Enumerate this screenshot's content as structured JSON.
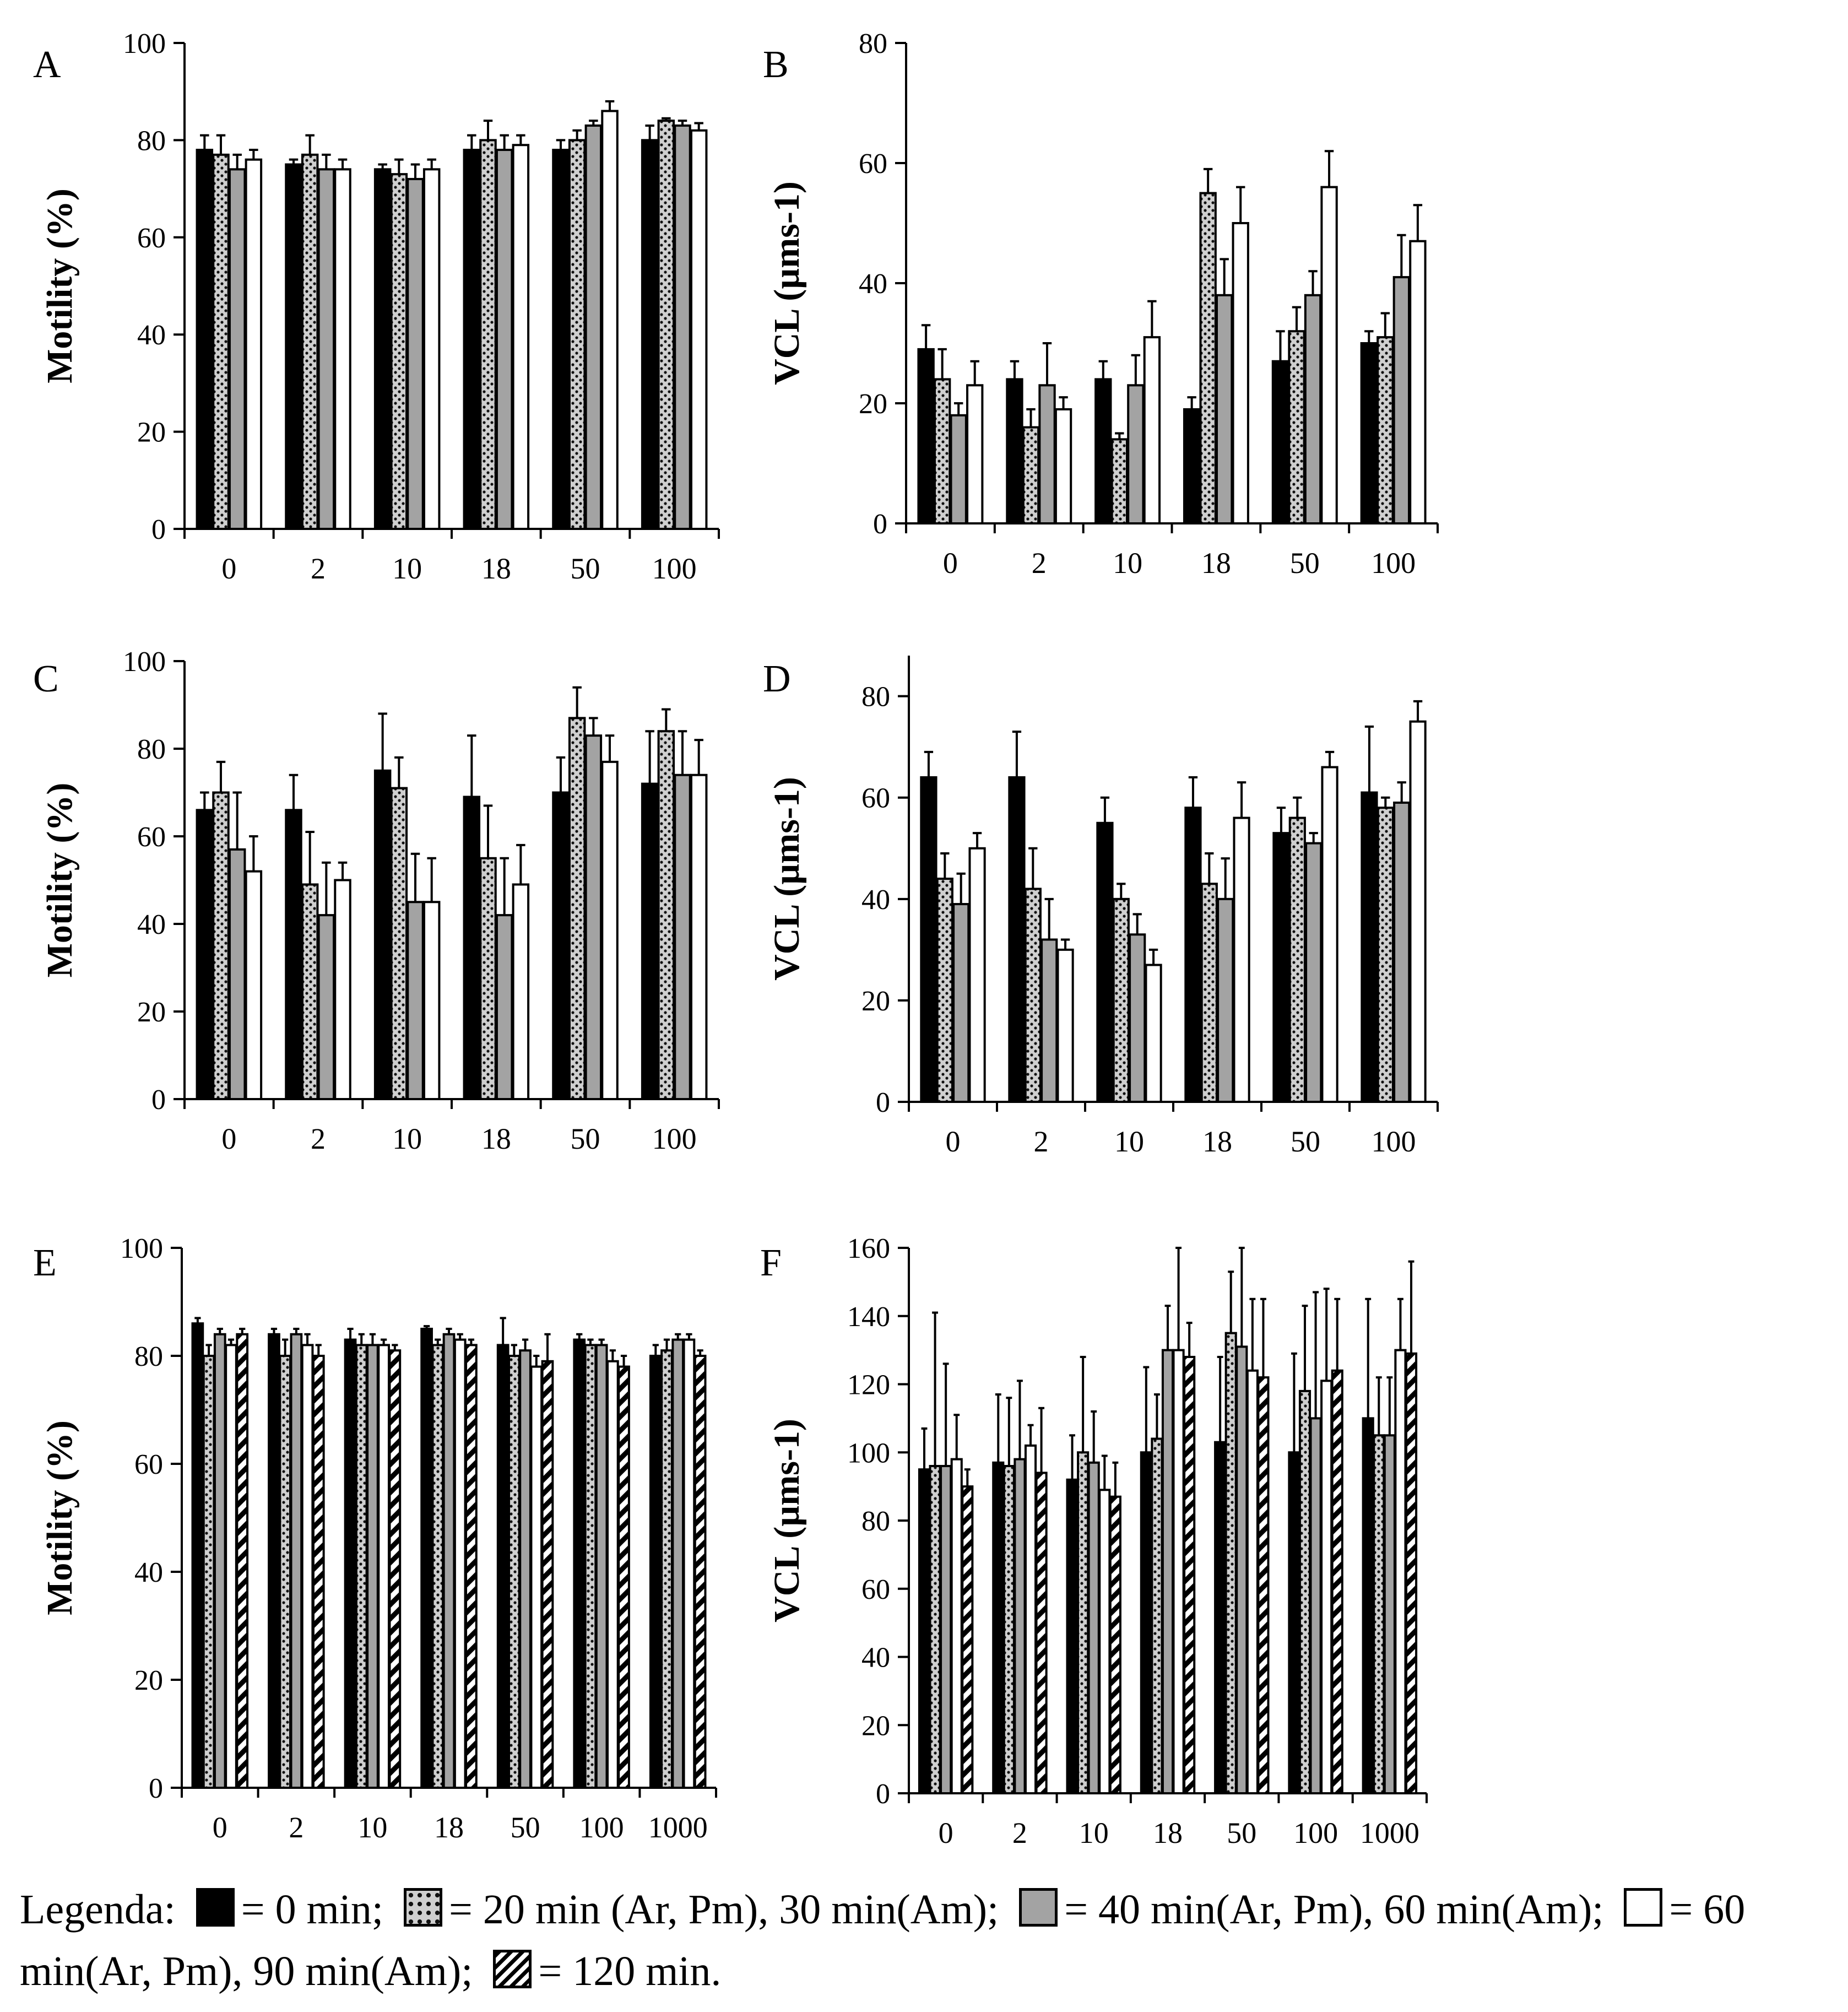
{
  "chart_data": [
    {
      "type": "bar",
      "panel": "A",
      "ylabel": "Motility (%)",
      "ylim": [
        0,
        100
      ],
      "yticks": [
        "0",
        "20",
        "40",
        "60",
        "80",
        "100"
      ],
      "categories": [
        "0",
        "2",
        "10",
        "18",
        "50",
        "100"
      ],
      "series": [
        {
          "name": "0 min",
          "values": [
            78,
            75,
            74,
            78,
            78,
            80
          ],
          "errors": [
            3,
            1,
            1,
            3,
            2,
            3
          ]
        },
        {
          "name": "20 min",
          "values": [
            77,
            77,
            73,
            80,
            80,
            84
          ],
          "errors": [
            4,
            4,
            3,
            4,
            2,
            0.5
          ]
        },
        {
          "name": "40 min",
          "values": [
            74,
            74,
            72,
            78,
            83,
            83
          ],
          "errors": [
            3,
            3,
            3,
            3,
            1,
            1
          ]
        },
        {
          "name": "60 min",
          "values": [
            76,
            74,
            74,
            79,
            86,
            82
          ],
          "errors": [
            2,
            2,
            2,
            2,
            2,
            1.5
          ]
        }
      ]
    },
    {
      "type": "bar",
      "panel": "B",
      "ylabel": "VCL (µms-1)",
      "ylim": [
        0,
        80
      ],
      "yticks": [
        "0",
        "20",
        "40",
        "60",
        "80"
      ],
      "categories": [
        "0",
        "2",
        "10",
        "18",
        "50",
        "100"
      ],
      "series": [
        {
          "name": "0 min",
          "values": [
            29,
            24,
            24,
            19,
            27,
            30
          ],
          "errors": [
            4,
            3,
            3,
            2,
            5,
            2
          ]
        },
        {
          "name": "20 min",
          "values": [
            24,
            16,
            14,
            55,
            32,
            31
          ],
          "errors": [
            5,
            3,
            1,
            4,
            4,
            4
          ]
        },
        {
          "name": "40 min",
          "values": [
            18,
            23,
            23,
            38,
            38,
            41
          ],
          "errors": [
            2,
            7,
            5,
            6,
            4,
            7
          ]
        },
        {
          "name": "60 min",
          "values": [
            23,
            19,
            31,
            50,
            56,
            47
          ],
          "errors": [
            4,
            2,
            6,
            6,
            6,
            6
          ]
        }
      ]
    },
    {
      "type": "bar",
      "panel": "C",
      "ylabel": "Motility (%)",
      "ylim": [
        0,
        100
      ],
      "yticks": [
        "0",
        "20",
        "40",
        "60",
        "80",
        "100"
      ],
      "categories": [
        "0",
        "2",
        "10",
        "18",
        "50",
        "100"
      ],
      "series": [
        {
          "name": "0 min",
          "values": [
            66,
            66,
            75,
            69,
            70,
            72
          ],
          "errors": [
            4,
            8,
            13,
            14,
            8,
            12
          ]
        },
        {
          "name": "20 min",
          "values": [
            70,
            49,
            71,
            55,
            87,
            84
          ],
          "errors": [
            7,
            12,
            7,
            12,
            7,
            5
          ]
        },
        {
          "name": "40 min",
          "values": [
            57,
            42,
            45,
            42,
            83,
            74
          ],
          "errors": [
            13,
            12,
            11,
            13,
            4,
            10
          ]
        },
        {
          "name": "60 min",
          "values": [
            52,
            50,
            45,
            49,
            77,
            74
          ],
          "errors": [
            8,
            4,
            10,
            9,
            6,
            8
          ]
        }
      ]
    },
    {
      "type": "bar",
      "panel": "D",
      "ylabel": "VCL (µms-1)",
      "ylim": [
        0,
        88
      ],
      "yticks": [
        "0",
        "20",
        "40",
        "60",
        "80"
      ],
      "categories": [
        "0",
        "2",
        "10",
        "18",
        "50",
        "100"
      ],
      "series": [
        {
          "name": "0 min",
          "values": [
            64,
            64,
            55,
            58,
            53,
            61
          ],
          "errors": [
            5,
            9,
            5,
            6,
            5,
            13
          ]
        },
        {
          "name": "20 min",
          "values": [
            44,
            42,
            40,
            43,
            56,
            58
          ],
          "errors": [
            5,
            8,
            3,
            6,
            4,
            2
          ]
        },
        {
          "name": "40 min",
          "values": [
            39,
            32,
            33,
            40,
            51,
            59
          ],
          "errors": [
            6,
            8,
            4,
            8,
            2,
            4
          ]
        },
        {
          "name": "60 min",
          "values": [
            50,
            30,
            27,
            56,
            66,
            75
          ],
          "errors": [
            3,
            2,
            3,
            7,
            3,
            4
          ]
        }
      ]
    },
    {
      "type": "bar",
      "panel": "E",
      "ylabel": "Motility (%)",
      "ylim": [
        0,
        100
      ],
      "yticks": [
        "0",
        "20",
        "40",
        "60",
        "80",
        "100"
      ],
      "categories": [
        "0",
        "2",
        "10",
        "18",
        "50",
        "100",
        "1000"
      ],
      "series": [
        {
          "name": "0 min",
          "values": [
            86,
            84,
            83,
            85,
            82,
            83,
            80
          ],
          "errors": [
            1,
            1,
            2,
            0.5,
            5,
            1,
            2
          ]
        },
        {
          "name": "20 min",
          "values": [
            80,
            80,
            82,
            82,
            80,
            82,
            81
          ],
          "errors": [
            2,
            3,
            2,
            1,
            2,
            1,
            2
          ]
        },
        {
          "name": "40 min",
          "values": [
            84,
            84,
            82,
            84,
            81,
            82,
            83
          ],
          "errors": [
            1,
            1,
            2,
            1,
            2,
            1,
            1
          ]
        },
        {
          "name": "60 min",
          "values": [
            82,
            82,
            82,
            83,
            78,
            79,
            83
          ],
          "errors": [
            1,
            2,
            1,
            1,
            2,
            2,
            1
          ]
        },
        {
          "name": "120 min",
          "values": [
            84,
            80,
            81,
            82,
            79,
            78,
            80
          ],
          "errors": [
            1,
            2,
            1,
            1,
            5,
            2,
            1
          ]
        }
      ]
    },
    {
      "type": "bar",
      "panel": "F",
      "ylabel": "VCL (µms-1)",
      "ylim": [
        0,
        160
      ],
      "yticks": [
        "0",
        "20",
        "40",
        "60",
        "80",
        "100",
        "120",
        "140",
        "160"
      ],
      "categories": [
        "0",
        "2",
        "10",
        "18",
        "50",
        "100",
        "1000"
      ],
      "series": [
        {
          "name": "0 min",
          "values": [
            95,
            97,
            92,
            100,
            103,
            100,
            110
          ],
          "errors": [
            12,
            20,
            13,
            25,
            25,
            29,
            35
          ]
        },
        {
          "name": "20 min",
          "values": [
            96,
            96,
            100,
            104,
            135,
            118,
            105
          ],
          "errors": [
            45,
            20,
            28,
            13,
            18,
            25,
            17
          ]
        },
        {
          "name": "40 min",
          "values": [
            96,
            98,
            97,
            130,
            131,
            110,
            105
          ],
          "errors": [
            30,
            23,
            15,
            13,
            29,
            37,
            17
          ]
        },
        {
          "name": "60 min",
          "values": [
            98,
            102,
            89,
            130,
            124,
            121,
            130
          ],
          "errors": [
            13,
            6,
            10,
            30,
            21,
            27,
            15
          ]
        },
        {
          "name": "120 min",
          "values": [
            90,
            94,
            87,
            128,
            122,
            124,
            129
          ],
          "errors": [
            5,
            19,
            10,
            10,
            23,
            21,
            27
          ]
        }
      ]
    }
  ],
  "legend": {
    "intro": "Legenda:",
    "entries": [
      {
        "name": "0 min",
        "text": "= 0 min;"
      },
      {
        "name": "20 min",
        "text": "= 20 min (Ar, Pm), 30 min(Am);"
      },
      {
        "name": "40 min",
        "text": "= 40 min(Ar, Pm), 60 min(Am);"
      },
      {
        "name": "60 min",
        "text": "= 60 min(Ar, Pm), 90 min(Am);"
      },
      {
        "name": "120 min",
        "text": "= 120 min."
      }
    ]
  },
  "colors": {
    "black": "#000000",
    "dotted_background": "#cfcfcf",
    "gray": "#a3a3a3",
    "white": "#ffffff",
    "axis": "#000000"
  }
}
